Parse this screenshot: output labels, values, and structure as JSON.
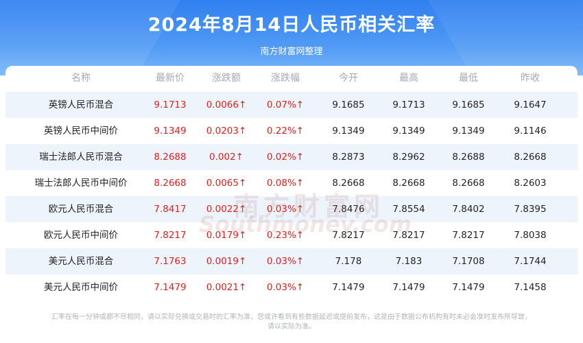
{
  "header": {
    "title": "2024年8月14日人民币相关汇率",
    "subtitle": "南方财富网整理"
  },
  "table": {
    "columns": [
      "名称",
      "最新价",
      "涨跌额",
      "涨跌幅",
      "今开",
      "最高",
      "最低",
      "昨收"
    ],
    "rows": [
      {
        "name": "英镑人民币混合",
        "latest": "9.1713",
        "change": "0.0066↑",
        "pct": "0.07%↑",
        "open": "9.1685",
        "high": "9.1713",
        "low": "9.1685",
        "prev": "9.1647"
      },
      {
        "name": "英镑人民币中间价",
        "latest": "9.1349",
        "change": "0.0203↑",
        "pct": "0.22%↑",
        "open": "9.1349",
        "high": "9.1349",
        "low": "9.1349",
        "prev": "9.1146"
      },
      {
        "name": "瑞士法郎人民币混合",
        "latest": "8.2688",
        "change": "0.002↑",
        "pct": "0.02%↑",
        "open": "8.2873",
        "high": "8.2962",
        "low": "8.2688",
        "prev": "8.2668"
      },
      {
        "name": "瑞士法郎人民币中间价",
        "latest": "8.2668",
        "change": "0.0065↑",
        "pct": "0.08%↑",
        "open": "8.2668",
        "high": "8.2668",
        "low": "8.2668",
        "prev": "8.2603"
      },
      {
        "name": "欧元人民币混合",
        "latest": "7.8417",
        "change": "0.0022↑",
        "pct": "0.03%↑",
        "open": "7.8476",
        "high": "7.8554",
        "low": "7.8402",
        "prev": "7.8395"
      },
      {
        "name": "欧元人民币中间价",
        "latest": "7.8217",
        "change": "0.0179↑",
        "pct": "0.23%↑",
        "open": "7.8217",
        "high": "7.8217",
        "low": "7.8217",
        "prev": "7.8038"
      },
      {
        "name": "美元人民币混合",
        "latest": "7.1763",
        "change": "0.0019↑",
        "pct": "0.03%↑",
        "open": "7.178",
        "high": "7.183",
        "low": "7.1708",
        "prev": "7.1744"
      },
      {
        "name": "美元人民币中间价",
        "latest": "7.1479",
        "change": "0.0021↑",
        "pct": "0.03%↑",
        "open": "7.1479",
        "high": "7.1479",
        "low": "7.1479",
        "prev": "7.1458"
      }
    ]
  },
  "watermark": {
    "cn": "南方财富网",
    "en": "Southmoney.com"
  },
  "footer": {
    "line1": "汇率在每一分钟或都不尽相同，请以实际兑换或交易时的汇率为准，您或许看到有些数据延迟或提前发布，这是由于数据公布机构有时未必会准时发布所导致，",
    "line2": "请以实际为准。"
  },
  "colors": {
    "header_blue": "#2f7ff0",
    "up_red": "#e02020",
    "row_alt": "#eef4fc"
  }
}
